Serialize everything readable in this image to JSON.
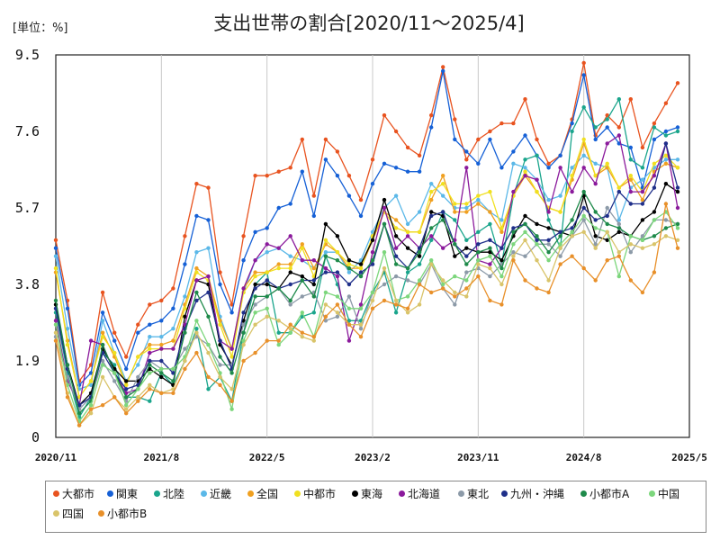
{
  "chart_data": {
    "type": "line",
    "title": "支出世帯の割合[2020/11～2025/4]",
    "unit_label": "[単位：%]",
    "y_ticks": [
      "9.5",
      "7.6",
      "5.7",
      "3.8",
      "1.9",
      "0"
    ],
    "ylim": [
      0,
      9.5
    ],
    "x_ticks": [
      "2020/11",
      "2021/8",
      "2022/5",
      "2023/2",
      "2023/11",
      "2024/8",
      "2025/5"
    ],
    "x_start": "2020/11",
    "x_end": "2025/5",
    "grid": "vertical",
    "legend_position": "bottom",
    "series": [
      {
        "name": "大都市",
        "color": "#e8531f",
        "values": [
          4.9,
          3.4,
          1.4,
          1.8,
          3.6,
          2.6,
          2.0,
          2.8,
          3.3,
          3.4,
          3.7,
          5.0,
          6.3,
          6.2,
          4.1,
          3.3,
          5.0,
          6.5,
          6.5,
          6.6,
          6.7,
          7.4,
          6.0,
          7.4,
          7.1,
          6.5,
          5.9,
          6.9,
          8.0,
          7.6,
          7.2,
          7.0,
          8.0,
          9.2,
          7.9,
          6.9,
          7.4,
          7.6,
          7.8,
          7.8,
          8.4,
          7.4,
          6.8,
          7.0,
          7.9,
          9.3,
          7.5,
          8.0,
          7.7,
          8.4,
          7.2,
          7.8,
          8.3,
          8.8
        ]
      },
      {
        "name": "関東",
        "color": "#1560d6",
        "values": [
          4.7,
          3.2,
          1.3,
          1.6,
          3.1,
          2.4,
          1.7,
          2.6,
          2.8,
          2.9,
          3.2,
          4.3,
          5.5,
          5.4,
          3.8,
          3.1,
          4.4,
          5.1,
          5.2,
          5.7,
          5.8,
          6.6,
          5.5,
          6.9,
          6.5,
          6.0,
          5.5,
          6.3,
          6.8,
          6.7,
          6.6,
          6.6,
          7.7,
          9.1,
          7.4,
          7.1,
          6.8,
          7.4,
          6.7,
          7.1,
          7.5,
          7.0,
          6.7,
          7.0,
          7.8,
          9.0,
          7.4,
          7.7,
          7.3,
          7.2,
          6.2,
          7.4,
          7.6,
          7.7
        ]
      },
      {
        "name": "北陸",
        "color": "#1aa58c",
        "values": [
          3.1,
          1.6,
          0.5,
          1.0,
          2.1,
          1.8,
          1.0,
          1.0,
          0.9,
          1.6,
          1.3,
          1.9,
          2.7,
          1.2,
          1.5,
          0.9,
          2.6,
          3.8,
          4.1,
          2.6,
          2.6,
          3.0,
          3.1,
          4.5,
          3.8,
          2.9,
          2.9,
          3.6,
          4.1,
          3.1,
          4.1,
          4.3,
          4.9,
          5.6,
          5.4,
          4.9,
          5.1,
          5.3,
          4.3,
          6.0,
          6.9,
          7.0,
          5.4,
          4.7,
          7.6,
          8.2,
          7.7,
          7.9,
          8.4,
          6.9,
          6.7,
          7.7,
          7.5,
          7.6
        ]
      },
      {
        "name": "近畿",
        "color": "#5bb8e8",
        "values": [
          4.5,
          2.7,
          1.2,
          1.3,
          2.9,
          2.1,
          1.4,
          1.8,
          2.5,
          2.5,
          2.7,
          3.5,
          4.6,
          4.7,
          3.0,
          2.2,
          3.6,
          4.4,
          4.6,
          4.7,
          4.5,
          4.4,
          4.2,
          4.6,
          4.6,
          4.1,
          4.4,
          5.1,
          5.7,
          6.0,
          5.3,
          5.6,
          6.3,
          6.0,
          5.7,
          5.7,
          5.9,
          5.6,
          5.4,
          6.8,
          6.7,
          6.4,
          5.9,
          6.0,
          6.7,
          7.0,
          6.8,
          6.7,
          5.4,
          6.2,
          6.4,
          6.7,
          6.9,
          6.9
        ]
      },
      {
        "name": "全国",
        "color": "#f0a020",
        "values": [
          4.1,
          2.4,
          1.0,
          1.4,
          2.6,
          2.0,
          1.3,
          2.0,
          2.3,
          2.3,
          2.4,
          3.3,
          4.2,
          4.0,
          2.9,
          2.2,
          3.7,
          4.1,
          4.1,
          4.3,
          4.3,
          4.8,
          4.2,
          4.8,
          4.6,
          4.2,
          4.2,
          4.9,
          5.6,
          5.4,
          5.1,
          5.1,
          5.9,
          6.5,
          5.6,
          5.6,
          5.8,
          5.6,
          5.1,
          6.0,
          6.5,
          6.1,
          5.7,
          5.6,
          6.4,
          7.3,
          6.5,
          6.7,
          6.2,
          6.4,
          5.9,
          6.6,
          6.8,
          6.7
        ]
      },
      {
        "name": "中都市",
        "color": "#f0e020",
        "values": [
          4.2,
          2.3,
          1.0,
          1.4,
          2.5,
          2.1,
          1.3,
          2.0,
          2.2,
          2.2,
          2.2,
          3.2,
          4.1,
          3.9,
          2.8,
          2.0,
          3.6,
          4.0,
          4.1,
          4.2,
          4.2,
          4.7,
          4.0,
          4.9,
          4.6,
          4.3,
          4.2,
          5.0,
          5.6,
          5.2,
          5.1,
          5.1,
          6.1,
          6.3,
          5.8,
          5.8,
          6.0,
          6.1,
          5.2,
          6.0,
          6.6,
          6.1,
          5.7,
          5.6,
          6.5,
          7.4,
          6.5,
          6.8,
          6.2,
          6.5,
          6.1,
          6.8,
          7.0,
          6.7
        ]
      },
      {
        "name": "東海",
        "color": "#000000",
        "values": [
          3.3,
          1.8,
          0.8,
          1.1,
          2.2,
          1.7,
          1.4,
          1.4,
          1.7,
          1.5,
          1.3,
          3.0,
          3.9,
          3.8,
          2.3,
          1.8,
          2.9,
          3.8,
          3.8,
          3.7,
          4.1,
          4.0,
          3.8,
          5.3,
          5.0,
          4.4,
          4.3,
          4.9,
          5.9,
          5.0,
          4.7,
          4.5,
          5.6,
          5.5,
          4.5,
          4.7,
          4.6,
          4.6,
          4.4,
          5.0,
          5.5,
          5.3,
          5.2,
          5.1,
          5.0,
          6.0,
          5.0,
          4.9,
          5.1,
          5.0,
          5.4,
          5.6,
          6.3,
          6.1
        ]
      },
      {
        "name": "北海道",
        "color": "#8b1a9c",
        "values": [
          2.9,
          1.4,
          0.8,
          2.4,
          2.3,
          1.6,
          1.1,
          1.2,
          2.1,
          2.2,
          2.2,
          2.8,
          3.9,
          4.0,
          2.4,
          2.2,
          3.7,
          4.4,
          4.8,
          4.7,
          5.0,
          4.4,
          4.4,
          4.2,
          4.0,
          2.4,
          3.3,
          4.6,
          5.7,
          4.7,
          5.0,
          4.7,
          5.0,
          4.7,
          4.9,
          6.7,
          4.4,
          4.3,
          4.7,
          6.1,
          6.5,
          6.4,
          5.6,
          6.7,
          6.1,
          6.7,
          6.3,
          7.3,
          7.5,
          6.1,
          6.1,
          6.5,
          7.3,
          5.7
        ]
      },
      {
        "name": "東北",
        "color": "#8c9aa8",
        "values": [
          2.5,
          1.5,
          0.7,
          1.0,
          1.9,
          1.4,
          0.9,
          1.5,
          1.9,
          1.7,
          1.7,
          2.2,
          2.5,
          2.3,
          1.8,
          1.8,
          2.8,
          3.3,
          3.5,
          3.7,
          3.3,
          3.5,
          3.6,
          2.9,
          3.0,
          3.5,
          2.7,
          3.6,
          3.8,
          4.0,
          3.9,
          3.8,
          4.3,
          3.7,
          3.3,
          4.1,
          4.2,
          4.0,
          4.3,
          4.6,
          4.5,
          4.8,
          4.8,
          4.5,
          5.0,
          5.4,
          4.8,
          5.7,
          5.3,
          4.6,
          5.0,
          5.4,
          5.4,
          5.3
        ]
      },
      {
        "name": "九州・沖縄",
        "color": "#1f2f8a",
        "values": [
          3.2,
          1.7,
          0.8,
          1.0,
          2.1,
          1.6,
          1.2,
          1.3,
          1.9,
          1.9,
          1.6,
          2.7,
          3.4,
          3.6,
          2.4,
          1.7,
          3.1,
          3.7,
          3.9,
          3.7,
          3.8,
          3.9,
          3.9,
          4.1,
          4.1,
          3.8,
          4.1,
          4.3,
          5.3,
          4.5,
          4.2,
          4.7,
          5.5,
          5.6,
          4.8,
          4.5,
          4.8,
          4.9,
          4.7,
          5.2,
          5.3,
          4.9,
          4.9,
          5.1,
          5.2,
          5.7,
          5.4,
          5.5,
          6.1,
          5.8,
          5.8,
          6.2,
          7.3,
          6.2
        ]
      },
      {
        "name": "小都市A",
        "color": "#1e8a4a",
        "values": [
          3.4,
          1.8,
          0.6,
          0.9,
          2.3,
          1.6,
          1.0,
          1.2,
          1.8,
          1.6,
          1.4,
          2.6,
          3.6,
          3.0,
          2.0,
          1.6,
          2.6,
          3.5,
          3.5,
          3.7,
          3.4,
          3.9,
          3.5,
          4.5,
          4.4,
          4.2,
          4.0,
          4.4,
          5.3,
          4.3,
          4.2,
          4.6,
          5.2,
          5.4,
          4.8,
          4.3,
          4.6,
          4.7,
          4.2,
          5.1,
          5.3,
          5.0,
          4.6,
          5.0,
          5.4,
          6.1,
          5.6,
          5.3,
          5.2,
          5.0,
          4.9,
          5.0,
          5.2,
          5.3
        ]
      },
      {
        "name": "中国",
        "color": "#7cd67c",
        "values": [
          2.8,
          1.3,
          0.4,
          0.8,
          1.8,
          1.6,
          0.8,
          1.2,
          1.6,
          1.7,
          1.7,
          2.0,
          2.9,
          2.3,
          1.6,
          0.7,
          2.4,
          3.1,
          3.2,
          2.3,
          2.6,
          3.1,
          2.5,
          3.6,
          3.5,
          3.2,
          3.2,
          3.6,
          4.6,
          3.4,
          3.5,
          3.9,
          4.4,
          3.8,
          4.0,
          3.9,
          4.4,
          4.5,
          4.0,
          4.8,
          5.1,
          4.8,
          4.4,
          4.8,
          5.1,
          5.5,
          5.2,
          5.1,
          4.0,
          5.0,
          4.9,
          5.4,
          5.6,
          5.2
        ]
      },
      {
        "name": "四国",
        "color": "#d9c46a",
        "values": [
          2.6,
          1.1,
          0.3,
          0.6,
          1.5,
          1.0,
          0.7,
          1.0,
          1.3,
          1.1,
          1.2,
          1.9,
          2.6,
          2.1,
          1.5,
          1.2,
          2.3,
          2.8,
          3.0,
          2.9,
          2.7,
          2.5,
          2.4,
          3.3,
          3.1,
          2.8,
          2.8,
          3.4,
          4.2,
          3.4,
          3.1,
          3.3,
          4.3,
          3.9,
          3.6,
          3.5,
          4.3,
          4.2,
          3.8,
          4.5,
          4.9,
          4.4,
          3.9,
          4.7,
          5.0,
          5.1,
          4.7,
          5.1,
          4.6,
          4.8,
          4.7,
          4.8,
          5.0,
          4.9
        ]
      },
      {
        "name": "小都市B",
        "color": "#e8902a",
        "values": [
          2.4,
          1.0,
          0.3,
          0.7,
          0.8,
          1.0,
          0.6,
          0.9,
          1.2,
          1.1,
          1.1,
          1.7,
          2.1,
          1.5,
          1.3,
          0.9,
          1.9,
          2.1,
          2.4,
          2.4,
          2.8,
          2.6,
          2.5,
          3.0,
          3.3,
          2.8,
          2.5,
          3.2,
          3.4,
          3.3,
          3.2,
          3.8,
          3.6,
          3.7,
          3.5,
          3.7,
          4.0,
          3.4,
          3.3,
          4.4,
          3.9,
          3.7,
          3.6,
          4.3,
          4.5,
          4.2,
          3.9,
          4.4,
          4.5,
          3.9,
          3.6,
          4.1,
          5.8,
          4.7
        ]
      }
    ]
  }
}
